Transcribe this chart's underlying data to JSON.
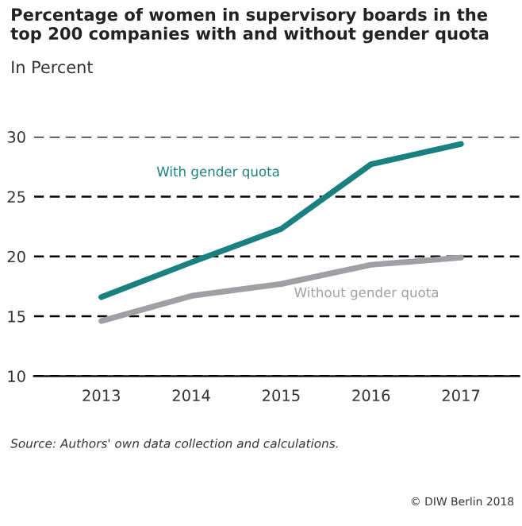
{
  "chart_data": {
    "type": "line",
    "title": "Percentage of women in supervisory boards in the top 200 companies with and without gender quota",
    "subtitle": "In Percent",
    "categories": [
      "2013",
      "2014",
      "2015",
      "2016",
      "2017"
    ],
    "series": [
      {
        "name": "With gender quota",
        "color": "#1a8080",
        "values": [
          16.6,
          19.5,
          22.3,
          27.7,
          29.4
        ]
      },
      {
        "name": "Without gender quota",
        "color": "#a0a0a4",
        "values": [
          14.6,
          16.7,
          17.7,
          19.3,
          19.9
        ]
      }
    ],
    "ylim": [
      10,
      30
    ],
    "yticks": [
      10,
      15,
      20,
      25,
      30
    ],
    "grid": "y",
    "legend": false,
    "marker": "none",
    "line_style": "solid",
    "annotations": [
      "Source: Authors' own data collection and calculations.",
      "© DIW Berlin 2018"
    ]
  }
}
